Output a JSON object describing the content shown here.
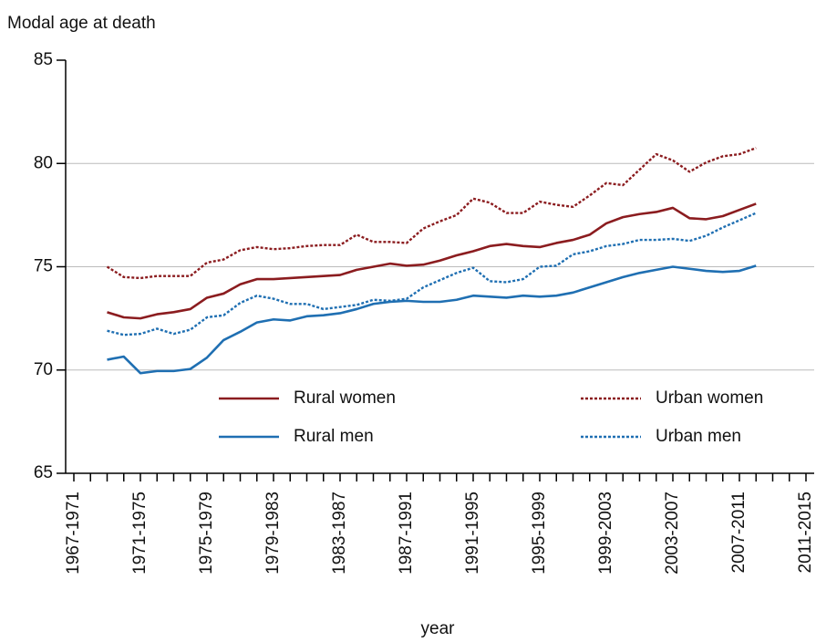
{
  "chart_data": {
    "type": "line",
    "y_label": "Modal age at death",
    "x_label": "year",
    "categories": [
      "1967-1971",
      null,
      null,
      null,
      "1971-1975",
      null,
      null,
      null,
      "1975-1979",
      null,
      null,
      null,
      "1979-1983",
      null,
      null,
      null,
      "1983-1987",
      null,
      null,
      null,
      "1987-1991",
      null,
      null,
      null,
      "1991-1995",
      null,
      null,
      null,
      "1995-1999",
      null,
      null,
      null,
      "1999-2003",
      null,
      null,
      null,
      "2003-2007",
      null,
      null,
      null,
      "2007-2011",
      null,
      null,
      null,
      "2011-2015"
    ],
    "series": [
      {
        "name": "Rural women",
        "color": "#8b1c1f",
        "style": "solid",
        "values": [
          null,
          null,
          72.8,
          72.55,
          72.5,
          72.7,
          72.8,
          72.95,
          73.5,
          73.7,
          74.15,
          74.4,
          74.4,
          74.45,
          74.5,
          74.55,
          74.6,
          74.85,
          75.0,
          75.15,
          75.05,
          75.1,
          75.3,
          75.55,
          75.75,
          76.0,
          76.1,
          76.0,
          75.95,
          76.15,
          76.3,
          76.55,
          77.1,
          77.4,
          77.55,
          77.65,
          77.85,
          77.35,
          77.3,
          77.45,
          77.75,
          78.05,
          null,
          null,
          null
        ]
      },
      {
        "name": "Urban women",
        "color": "#8b1c1f",
        "style": "dotted",
        "values": [
          null,
          null,
          75.0,
          74.5,
          74.45,
          74.55,
          74.55,
          74.55,
          75.2,
          75.35,
          75.8,
          75.95,
          75.85,
          75.9,
          76.0,
          76.05,
          76.05,
          76.55,
          76.2,
          76.2,
          76.15,
          76.85,
          77.2,
          77.5,
          78.3,
          78.1,
          77.6,
          77.6,
          78.15,
          78.0,
          77.9,
          78.45,
          79.05,
          78.95,
          79.7,
          80.45,
          80.15,
          79.6,
          80.05,
          80.35,
          80.45,
          80.75,
          null,
          null,
          null
        ]
      },
      {
        "name": "Rural men",
        "color": "#1f6fb2",
        "style": "solid",
        "values": [
          null,
          null,
          70.5,
          70.65,
          69.85,
          69.95,
          69.95,
          70.05,
          70.6,
          71.45,
          71.85,
          72.3,
          72.45,
          72.4,
          72.6,
          72.65,
          72.75,
          72.95,
          73.2,
          73.3,
          73.35,
          73.3,
          73.3,
          73.4,
          73.6,
          73.55,
          73.5,
          73.6,
          73.55,
          73.6,
          73.75,
          74.0,
          74.25,
          74.5,
          74.7,
          74.85,
          75.0,
          74.9,
          74.8,
          74.75,
          74.8,
          75.05,
          null,
          null,
          null
        ]
      },
      {
        "name": "Urban men",
        "color": "#1f6fb2",
        "style": "dotted",
        "values": [
          null,
          null,
          71.9,
          71.7,
          71.75,
          72.0,
          71.75,
          71.95,
          72.55,
          72.65,
          73.25,
          73.6,
          73.45,
          73.2,
          73.2,
          72.95,
          73.05,
          73.15,
          73.4,
          73.35,
          73.45,
          74.0,
          74.35,
          74.7,
          74.95,
          74.3,
          74.25,
          74.4,
          75.0,
          75.05,
          75.6,
          75.75,
          76.0,
          76.1,
          76.3,
          76.3,
          76.35,
          76.25,
          76.5,
          76.9,
          77.25,
          77.6,
          null,
          null,
          null
        ]
      }
    ],
    "ylim": [
      65,
      85
    ],
    "yticks": [
      65,
      70,
      75,
      80,
      85
    ],
    "grid": true
  }
}
